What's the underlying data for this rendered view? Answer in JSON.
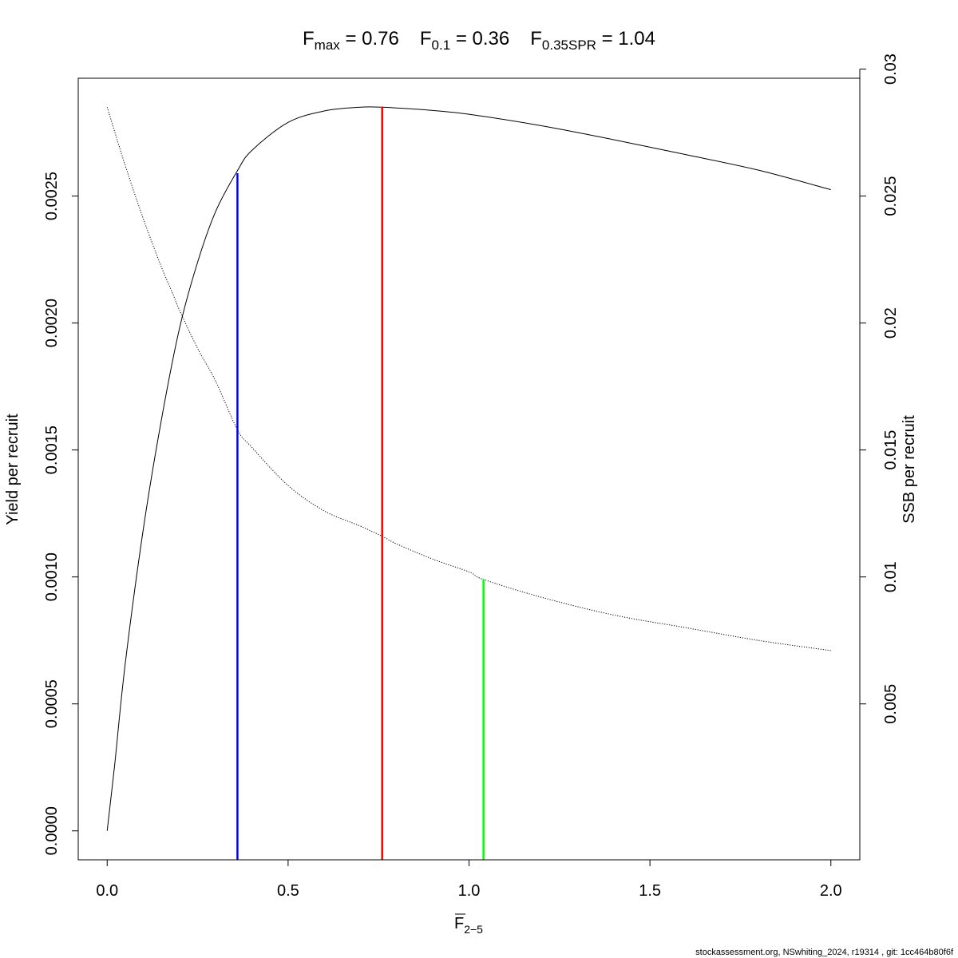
{
  "chart_data": {
    "type": "line",
    "title_parts": [
      {
        "main": "F",
        "sub": "max",
        "value": "0.76"
      },
      {
        "main": "F",
        "sub": "0.1",
        "value": "0.36"
      },
      {
        "main": "F",
        "sub": "0.35SPR",
        "value": "1.04"
      }
    ],
    "x_axis": {
      "label_main": "F",
      "label_sub": "2−5",
      "range": [
        -0.08,
        2.08
      ],
      "ticks": [
        0.0,
        0.5,
        1.0,
        1.5,
        2.0
      ],
      "tick_labels": [
        "0.0",
        "0.5",
        "1.0",
        "1.5",
        "2.0"
      ]
    },
    "y_left": {
      "label": "Yield per recruit",
      "range": [
        -0.000114,
        0.002964
      ],
      "ticks": [
        0.0,
        0.0005,
        0.001,
        0.0015,
        0.002,
        0.0025
      ],
      "tick_labels": [
        "0.0000",
        "0.0005",
        "0.0010",
        "0.0015",
        "0.0020",
        "0.0025"
      ]
    },
    "y_right": {
      "label": "SSB per recruit",
      "range": [
        -0.00114,
        0.02964
      ],
      "ticks": [
        0.005,
        0.01,
        0.015,
        0.02,
        0.025,
        0.03
      ],
      "tick_labels": [
        "0.005",
        "0.01",
        "0.015",
        "0.02",
        "0.025",
        "0.03"
      ]
    },
    "series": [
      {
        "axis": "left",
        "style": "solid",
        "color": "#000000",
        "x": [
          0,
          0.02,
          0.05,
          0.1,
          0.15,
          0.2,
          0.25,
          0.3,
          0.36,
          0.4,
          0.5,
          0.6,
          0.7,
          0.76,
          0.8,
          0.9,
          1.0,
          1.2,
          1.4,
          1.6,
          1.8,
          2.0
        ],
        "y": [
          0,
          0.00025,
          0.00066,
          0.00119,
          0.00162,
          0.00198,
          0.00224,
          0.00244,
          0.0026,
          0.00268,
          0.00279,
          0.002835,
          0.00285,
          0.00285,
          0.002847,
          0.002837,
          0.002822,
          0.002777,
          0.002722,
          0.002663,
          0.002602,
          0.002525
        ]
      },
      {
        "axis": "right",
        "style": "dotted",
        "color": "#000000",
        "x": [
          0,
          0.05,
          0.1,
          0.15,
          0.18,
          0.2,
          0.25,
          0.3,
          0.36,
          0.4,
          0.5,
          0.6,
          0.7,
          0.76,
          0.8,
          0.9,
          1.0,
          1.04,
          1.2,
          1.4,
          1.6,
          1.8,
          2.0
        ],
        "y": [
          0.0285,
          0.0262,
          0.0241,
          0.0222,
          0.0212,
          0.0205,
          0.019,
          0.0177,
          0.0158,
          0.0151,
          0.0136,
          0.0126,
          0.012,
          0.0116,
          0.0113,
          0.0107,
          0.0102,
          0.0099,
          0.0092,
          0.0085,
          0.008,
          0.0075,
          0.0071
        ]
      }
    ],
    "reference_lines": [
      {
        "x": 0.36,
        "y_top": 0.00259,
        "axis": "left",
        "color": "#0000ff"
      },
      {
        "x": 0.76,
        "y_top": 0.002852,
        "axis": "left",
        "color": "#ff0000"
      },
      {
        "x": 1.04,
        "y_top": 0.0099,
        "axis": "right",
        "color": "#00ff00"
      }
    ],
    "grid": false,
    "legend": "none"
  },
  "footer": "stockassessment.org, NSwhiting_2024, r19314 , git: 1cc464b80f6f"
}
